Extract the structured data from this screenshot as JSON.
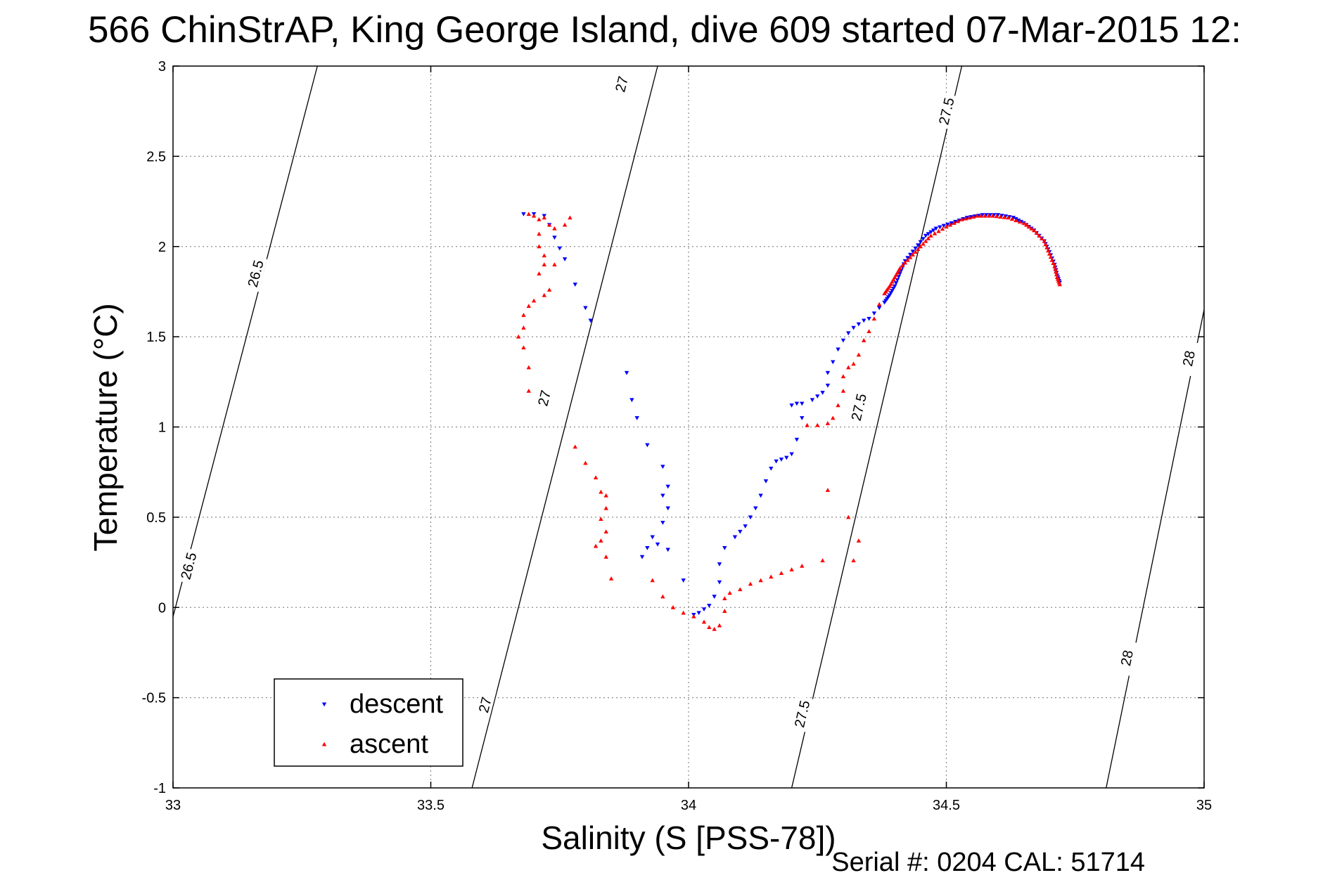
{
  "title": "566 ChinStrAP, King George Island, dive 609 started 07-Mar-2015 12:",
  "footer": "Serial #: 0204  CAL: 51714",
  "chart_data": {
    "type": "scatter",
    "title": "566 ChinStrAP, King George Island, dive 609 started 07-Mar-2015 12:",
    "xlabel": "Salinity (S [PSS-78])",
    "ylabel": "Temperature (°C)",
    "xlim": [
      33,
      35
    ],
    "ylim": [
      -1,
      3
    ],
    "xticks": [
      33,
      33.5,
      34,
      34.5,
      35
    ],
    "xtick_labels": [
      "33",
      "33.5",
      "34",
      "34.5",
      "35"
    ],
    "yticks": [
      -1,
      -0.5,
      0,
      0.5,
      1,
      1.5,
      2,
      2.5,
      3
    ],
    "ytick_labels": [
      "-1",
      "-0.5",
      "0",
      "0.5",
      "1",
      "1.5",
      "2",
      "2.5",
      "3"
    ],
    "grid": true,
    "legend": {
      "placement": "bottom-left"
    },
    "series": [
      {
        "name": "descent",
        "marker": "triangle-down",
        "color": "#0000ff",
        "points": [
          [
            33.68,
            2.18
          ],
          [
            33.7,
            2.18
          ],
          [
            33.72,
            2.17
          ],
          [
            33.73,
            2.12
          ],
          [
            33.74,
            2.05
          ],
          [
            33.75,
            1.99
          ],
          [
            33.76,
            1.93
          ],
          [
            33.78,
            1.79
          ],
          [
            33.8,
            1.66
          ],
          [
            33.81,
            1.59
          ],
          [
            33.88,
            1.3
          ],
          [
            33.89,
            1.15
          ],
          [
            33.9,
            1.05
          ],
          [
            33.92,
            0.9
          ],
          [
            33.95,
            0.78
          ],
          [
            33.96,
            0.67
          ],
          [
            33.95,
            0.62
          ],
          [
            33.96,
            0.55
          ],
          [
            33.95,
            0.47
          ],
          [
            33.93,
            0.39
          ],
          [
            33.92,
            0.33
          ],
          [
            33.91,
            0.28
          ],
          [
            33.94,
            0.35
          ],
          [
            33.96,
            0.32
          ],
          [
            33.99,
            0.15
          ],
          [
            34.01,
            -0.04
          ],
          [
            34.02,
            -0.03
          ],
          [
            34.03,
            -0.01
          ],
          [
            34.04,
            0.01
          ],
          [
            34.05,
            0.06
          ],
          [
            34.06,
            0.14
          ],
          [
            34.06,
            0.24
          ],
          [
            34.07,
            0.33
          ],
          [
            34.09,
            0.39
          ],
          [
            34.1,
            0.42
          ],
          [
            34.11,
            0.45
          ],
          [
            34.12,
            0.5
          ],
          [
            34.13,
            0.55
          ],
          [
            34.14,
            0.62
          ],
          [
            34.15,
            0.7
          ],
          [
            34.16,
            0.77
          ],
          [
            34.17,
            0.81
          ],
          [
            34.18,
            0.82
          ],
          [
            34.19,
            0.83
          ],
          [
            34.2,
            0.85
          ],
          [
            34.21,
            0.93
          ],
          [
            34.22,
            1.05
          ],
          [
            34.2,
            1.12
          ],
          [
            34.21,
            1.13
          ],
          [
            34.22,
            1.13
          ],
          [
            34.24,
            1.15
          ],
          [
            34.25,
            1.17
          ],
          [
            34.26,
            1.19
          ],
          [
            34.27,
            1.23
          ],
          [
            34.27,
            1.3
          ],
          [
            34.28,
            1.36
          ],
          [
            34.29,
            1.43
          ],
          [
            34.3,
            1.48
          ],
          [
            34.31,
            1.52
          ],
          [
            34.32,
            1.55
          ],
          [
            34.33,
            1.57
          ],
          [
            34.34,
            1.59
          ],
          [
            34.35,
            1.6
          ],
          [
            34.36,
            1.63
          ],
          [
            34.37,
            1.66
          ],
          [
            34.38,
            1.69
          ],
          [
            34.39,
            1.73
          ],
          [
            34.4,
            1.78
          ],
          [
            34.41,
            1.85
          ],
          [
            34.42,
            1.92
          ],
          [
            34.44,
            1.99
          ],
          [
            34.46,
            2.06
          ],
          [
            34.48,
            2.1
          ],
          [
            34.51,
            2.13
          ],
          [
            34.54,
            2.16
          ],
          [
            34.57,
            2.175
          ],
          [
            34.6,
            2.175
          ],
          [
            34.63,
            2.16
          ],
          [
            34.65,
            2.13
          ],
          [
            34.67,
            2.09
          ],
          [
            34.69,
            2.03
          ],
          [
            34.7,
            1.97
          ],
          [
            34.71,
            1.9
          ],
          [
            34.715,
            1.84
          ],
          [
            34.72,
            1.8
          ]
        ]
      },
      {
        "name": "ascent",
        "marker": "triangle-up",
        "color": "#ff0000",
        "points": [
          [
            33.69,
            2.18
          ],
          [
            33.7,
            2.17
          ],
          [
            33.71,
            2.15
          ],
          [
            33.72,
            2.16
          ],
          [
            33.73,
            2.12
          ],
          [
            33.74,
            2.1
          ],
          [
            33.76,
            2.12
          ],
          [
            33.77,
            2.16
          ],
          [
            33.71,
            2.07
          ],
          [
            33.71,
            2.0
          ],
          [
            33.72,
            1.95
          ],
          [
            33.72,
            1.9
          ],
          [
            33.71,
            1.85
          ],
          [
            33.74,
            1.9
          ],
          [
            33.73,
            1.76
          ],
          [
            33.72,
            1.73
          ],
          [
            33.7,
            1.7
          ],
          [
            33.69,
            1.67
          ],
          [
            33.68,
            1.62
          ],
          [
            33.68,
            1.55
          ],
          [
            33.67,
            1.5
          ],
          [
            33.68,
            1.44
          ],
          [
            33.69,
            1.33
          ],
          [
            33.69,
            1.2
          ],
          [
            33.78,
            0.89
          ],
          [
            33.8,
            0.8
          ],
          [
            33.82,
            0.72
          ],
          [
            33.83,
            0.64
          ],
          [
            33.84,
            0.62
          ],
          [
            33.84,
            0.55
          ],
          [
            33.83,
            0.49
          ],
          [
            33.84,
            0.42
          ],
          [
            33.83,
            0.37
          ],
          [
            33.82,
            0.34
          ],
          [
            33.84,
            0.28
          ],
          [
            33.85,
            0.16
          ],
          [
            33.93,
            0.15
          ],
          [
            33.95,
            0.06
          ],
          [
            33.97,
            0.0
          ],
          [
            33.99,
            -0.03
          ],
          [
            34.01,
            -0.05
          ],
          [
            34.03,
            -0.08
          ],
          [
            34.04,
            -0.11
          ],
          [
            34.05,
            -0.12
          ],
          [
            34.06,
            -0.1
          ],
          [
            34.07,
            -0.02
          ],
          [
            34.07,
            0.05
          ],
          [
            34.08,
            0.08
          ],
          [
            34.1,
            0.1
          ],
          [
            34.12,
            0.13
          ],
          [
            34.14,
            0.15
          ],
          [
            34.16,
            0.17
          ],
          [
            34.18,
            0.19
          ],
          [
            34.2,
            0.21
          ],
          [
            34.22,
            0.23
          ],
          [
            34.26,
            0.26
          ],
          [
            34.32,
            0.26
          ],
          [
            34.33,
            0.37
          ],
          [
            34.31,
            0.5
          ],
          [
            34.27,
            0.65
          ],
          [
            34.23,
            1.01
          ],
          [
            34.25,
            1.01
          ],
          [
            34.27,
            1.02
          ],
          [
            34.28,
            1.05
          ],
          [
            34.29,
            1.12
          ],
          [
            34.3,
            1.2
          ],
          [
            34.3,
            1.28
          ],
          [
            34.31,
            1.33
          ],
          [
            34.32,
            1.35
          ],
          [
            34.33,
            1.4
          ],
          [
            34.34,
            1.48
          ],
          [
            34.35,
            1.53
          ],
          [
            34.36,
            1.6
          ],
          [
            34.37,
            1.68
          ],
          [
            34.38,
            1.74
          ],
          [
            34.39,
            1.78
          ],
          [
            34.4,
            1.83
          ],
          [
            34.41,
            1.88
          ],
          [
            34.43,
            1.94
          ],
          [
            34.45,
            2.0
          ],
          [
            34.47,
            2.06
          ],
          [
            34.5,
            2.11
          ],
          [
            34.53,
            2.15
          ],
          [
            34.56,
            2.17
          ],
          [
            34.59,
            2.17
          ],
          [
            34.62,
            2.16
          ],
          [
            34.65,
            2.13
          ],
          [
            34.67,
            2.09
          ],
          [
            34.69,
            2.03
          ],
          [
            34.7,
            1.96
          ],
          [
            34.71,
            1.89
          ],
          [
            34.715,
            1.83
          ],
          [
            34.72,
            1.79
          ]
        ]
      }
    ],
    "isopycnals": [
      {
        "label": "26.5",
        "points": [
          [
            32.99,
            -0.16
          ],
          [
            33.28,
            3.0
          ]
        ],
        "label_positions": [
          [
            33.16,
            1.85
          ],
          [
            33.03,
            0.23
          ]
        ]
      },
      {
        "label": "27",
        "points": [
          [
            33.58,
            -1.0
          ],
          [
            33.94,
            3.0
          ]
        ],
        "label_positions": [
          [
            33.87,
            2.9
          ],
          [
            33.72,
            1.16
          ],
          [
            33.605,
            -0.54
          ]
        ]
      },
      {
        "label": "27.5",
        "points": [
          [
            34.2,
            -1.0
          ],
          [
            34.53,
            3.0
          ]
        ],
        "label_positions": [
          [
            34.5,
            2.75
          ],
          [
            34.33,
            1.11
          ],
          [
            34.22,
            -0.59
          ]
        ]
      },
      {
        "label": "28",
        "points": [
          [
            34.81,
            -1.0
          ],
          [
            35.0,
            1.65
          ]
        ],
        "label_positions": [
          [
            34.97,
            1.38
          ],
          [
            34.85,
            -0.28
          ]
        ]
      }
    ]
  }
}
